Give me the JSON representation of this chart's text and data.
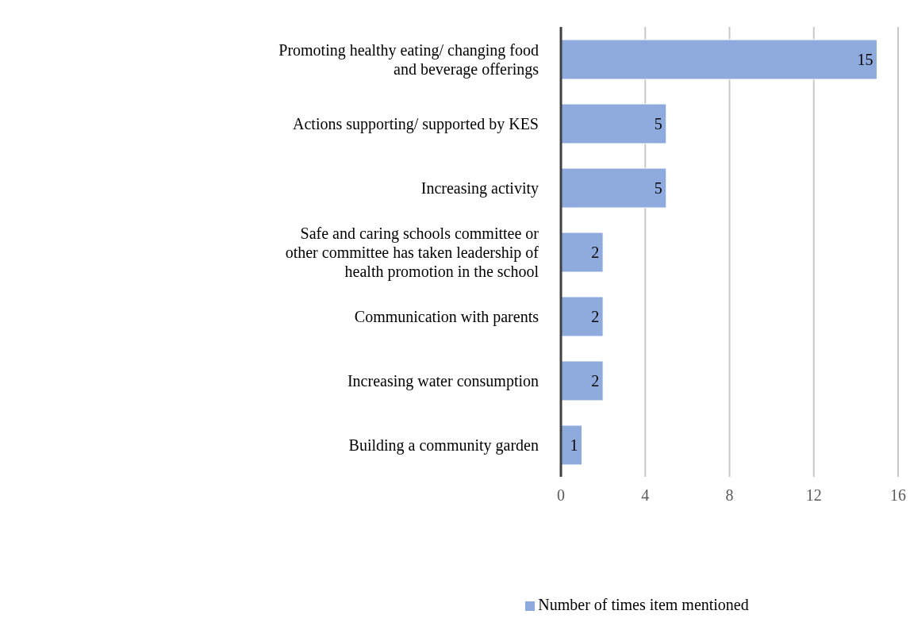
{
  "chart_data": {
    "type": "bar",
    "orientation": "horizontal",
    "categories": [
      "Promoting healthy eating/ changing food and beverage offerings",
      "Actions supporting/ supported by KES",
      "Increasing activity",
      "Safe and caring schools committee or other committee has taken leadership of health promotion in the school",
      "Communication with parents",
      "Increasing water consumption",
      "Building a community garden"
    ],
    "series": [
      {
        "name": "Number of times item mentioned",
        "color": "#8faadc",
        "values": [
          15,
          5,
          5,
          2,
          2,
          2,
          1
        ]
      }
    ],
    "xlim": [
      0,
      16
    ],
    "xticks": [
      0,
      4,
      8,
      12,
      16
    ],
    "grid": "x",
    "data_labels": true,
    "legend": "bottom"
  }
}
